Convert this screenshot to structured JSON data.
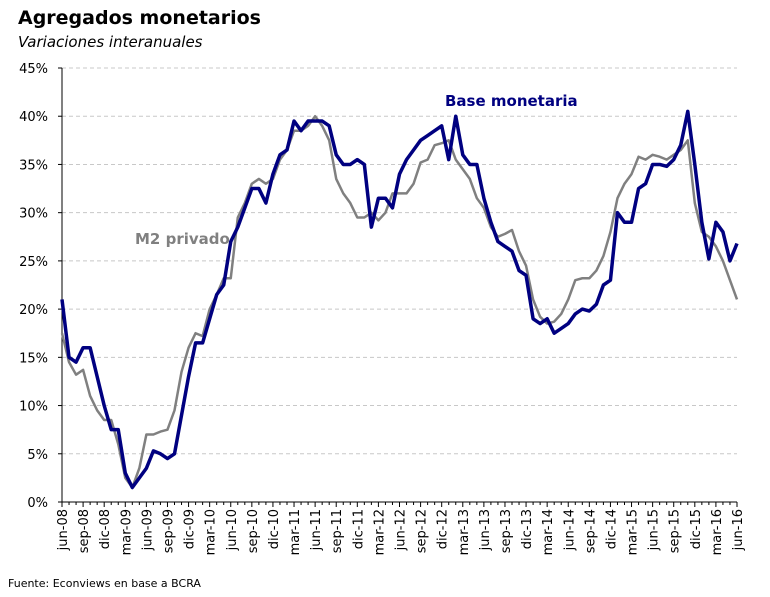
{
  "chart_data": {
    "type": "line",
    "title": "Agregados monetarios",
    "subtitle": "Variaciones interanuales",
    "source": "Fuente: Econviews en base a BCRA",
    "categories": [
      "jun-08",
      null,
      null,
      "sep-08",
      null,
      null,
      "dic-08",
      null,
      null,
      "mar-09",
      null,
      null,
      "jun-09",
      null,
      null,
      "sep-09",
      null,
      null,
      "dic-09",
      null,
      null,
      "mar-10",
      null,
      null,
      "jun-10",
      null,
      null,
      "sep-10",
      null,
      null,
      "dic-10",
      null,
      null,
      "mar-11",
      null,
      null,
      "jun-11",
      null,
      null,
      "sep-11",
      null,
      null,
      "dic-11",
      null,
      null,
      "mar-12",
      null,
      null,
      "jun-12",
      null,
      null,
      "sep-12",
      null,
      null,
      "dic-12",
      null,
      null,
      "mar-13",
      null,
      null,
      "jun-13",
      null,
      null,
      "sep-13",
      null,
      null,
      "dic-13",
      null,
      null,
      "mar-14",
      null,
      null,
      "jun-14",
      null,
      null,
      "sep-14",
      null,
      null,
      "dic-14",
      null,
      null,
      "mar-15",
      null,
      null,
      "jun-15",
      null,
      null,
      "sep-15",
      null,
      null,
      "dic-15",
      null,
      null,
      "mar-16",
      null,
      null,
      "jun-16"
    ],
    "series": [
      {
        "name": "Base monetaria",
        "color": "#000080",
        "values": [
          21,
          15,
          14.5,
          16,
          16,
          13,
          10,
          7.5,
          7.5,
          3,
          1.5,
          2.5,
          3.5,
          5.3,
          5,
          4.5,
          5,
          9,
          13,
          16.5,
          16.5,
          19,
          21.5,
          22.5,
          27,
          28.5,
          30.5,
          32.5,
          32.5,
          31,
          34,
          36,
          36.5,
          39.5,
          38.5,
          39.5,
          39.5,
          39.5,
          39,
          36,
          35,
          35,
          35.5,
          35,
          28.5,
          31.5,
          31.5,
          30.5,
          34,
          35.5,
          36.5,
          37.5,
          38,
          38.5,
          39,
          35.5,
          40,
          36,
          35,
          35,
          31.5,
          29,
          27,
          26.5,
          26,
          24,
          23.5,
          19,
          18.5,
          19,
          17.5,
          18,
          18.5,
          19.5,
          20,
          19.8,
          20.5,
          22.5,
          23,
          30,
          29,
          29,
          32.5,
          33,
          35,
          35,
          34.8,
          35.5,
          37,
          40.5,
          35,
          29,
          25.2,
          29,
          28,
          25,
          26.8
        ]
      },
      {
        "name": "M2 privado",
        "color": "#808080",
        "values": [
          17.5,
          14.5,
          13.2,
          13.7,
          11,
          9.5,
          8.5,
          8.5,
          6,
          2.5,
          1.5,
          3.5,
          7,
          7,
          7.3,
          7.5,
          9.5,
          13.5,
          16,
          17.5,
          17.2,
          20,
          21.5,
          23.2,
          23.2,
          29.5,
          31,
          33,
          33.5,
          33,
          33.5,
          35.5,
          36.5,
          38.5,
          38.5,
          39,
          40,
          39,
          37.5,
          33.5,
          32,
          31,
          29.5,
          29.5,
          30,
          29.2,
          30,
          32,
          32,
          32,
          33,
          35.2,
          35.5,
          37,
          37.2,
          37.5,
          35.5,
          34.5,
          33.5,
          31.5,
          30.5,
          28.5,
          27.5,
          27.8,
          28.2,
          26,
          24.5,
          21,
          19.2,
          18.5,
          18.7,
          19.5,
          21,
          23,
          23.2,
          23.2,
          24,
          25.5,
          28,
          31.5,
          33,
          34,
          35.8,
          35.5,
          36,
          35.8,
          35.5,
          36,
          36.5,
          37.5,
          31,
          28,
          27.5,
          26.5,
          25,
          23,
          21
        ]
      }
    ],
    "ylim": [
      0,
      45
    ],
    "yticks": [
      {
        "value": 0,
        "label": "0%"
      },
      {
        "value": 5,
        "label": "5%"
      },
      {
        "value": 10,
        "label": "10%"
      },
      {
        "value": 15,
        "label": "15%"
      },
      {
        "value": 20,
        "label": "20%"
      },
      {
        "value": 25,
        "label": "25%"
      },
      {
        "value": 30,
        "label": "30%"
      },
      {
        "value": 35,
        "label": "35%"
      },
      {
        "value": 40,
        "label": "40%"
      },
      {
        "value": 45,
        "label": "45%"
      }
    ],
    "grid": true
  }
}
